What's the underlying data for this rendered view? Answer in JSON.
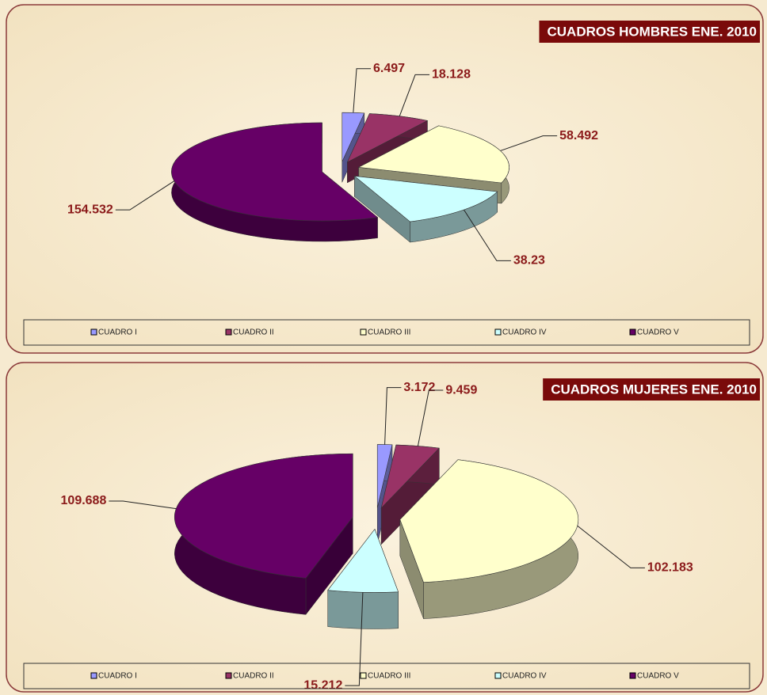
{
  "chart_data": [
    {
      "type": "pie",
      "title": "CUADROS HOMBRES ENE. 2010",
      "categories": [
        "CUADRO I",
        "CUADRO II",
        "CUADRO III",
        "CUADRO IV",
        "CUADRO V"
      ],
      "values": [
        6.497,
        18.128,
        58.492,
        38.23,
        154.532
      ],
      "colors": [
        "#9999ff",
        "#993366",
        "#ffffcc",
        "#ccffff",
        "#660066"
      ]
    },
    {
      "type": "pie",
      "title": "CUADROS MUJERES ENE. 2010",
      "categories": [
        "CUADRO I",
        "CUADRO II",
        "CUADRO III",
        "CUADRO IV",
        "CUADRO V"
      ],
      "values": [
        3.172,
        9.459,
        102.183,
        15.212,
        109.688
      ],
      "colors": [
        "#9999ff",
        "#993366",
        "#ffffcc",
        "#ccffff",
        "#660066"
      ]
    }
  ]
}
